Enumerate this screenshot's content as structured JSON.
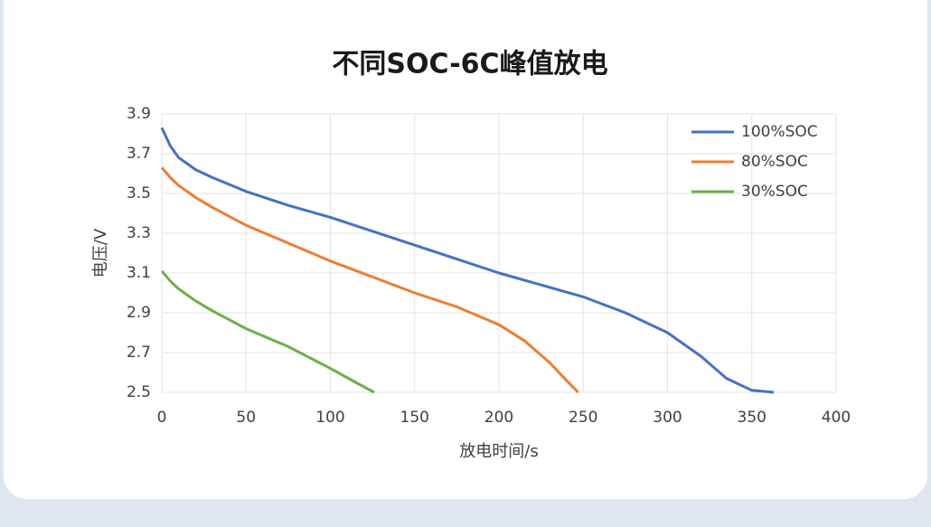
{
  "chart_data": {
    "type": "line",
    "title": "不同SOC-6C峰值放电",
    "x_label": "放电时间/s",
    "y_label": "电压/V",
    "xlim": [
      0,
      400
    ],
    "xticks": [
      0,
      50,
      100,
      150,
      200,
      250,
      300,
      350,
      400
    ],
    "ylim": [
      2.5,
      3.9
    ],
    "yticks": [
      2.5,
      2.7,
      2.9,
      3.1,
      3.3,
      3.5,
      3.7,
      3.9
    ],
    "grid": true,
    "legend": "upper right",
    "series": [
      {
        "name": "100%SOC",
        "color": "#4472c4",
        "x": [
          0,
          5,
          10,
          20,
          30,
          50,
          75,
          100,
          125,
          150,
          175,
          200,
          225,
          250,
          275,
          300,
          320,
          335,
          350,
          363
        ],
        "values": [
          3.83,
          3.74,
          3.68,
          3.62,
          3.58,
          3.51,
          3.44,
          3.38,
          3.31,
          3.24,
          3.17,
          3.1,
          3.04,
          2.98,
          2.9,
          2.8,
          2.68,
          2.57,
          2.51,
          2.5
        ]
      },
      {
        "name": "80%SOC",
        "color": "#ed7d31",
        "x": [
          0,
          5,
          10,
          20,
          30,
          50,
          75,
          100,
          125,
          150,
          175,
          200,
          215,
          230,
          240,
          247
        ],
        "values": [
          3.63,
          3.58,
          3.54,
          3.48,
          3.43,
          3.34,
          3.25,
          3.16,
          3.08,
          3.0,
          2.93,
          2.84,
          2.76,
          2.65,
          2.56,
          2.5
        ]
      },
      {
        "name": "30%SOC",
        "color": "#70ad47",
        "x": [
          0,
          5,
          10,
          20,
          30,
          50,
          75,
          100,
          115,
          126
        ],
        "values": [
          3.11,
          3.06,
          3.02,
          2.96,
          2.91,
          2.82,
          2.73,
          2.62,
          2.55,
          2.5
        ]
      }
    ]
  }
}
